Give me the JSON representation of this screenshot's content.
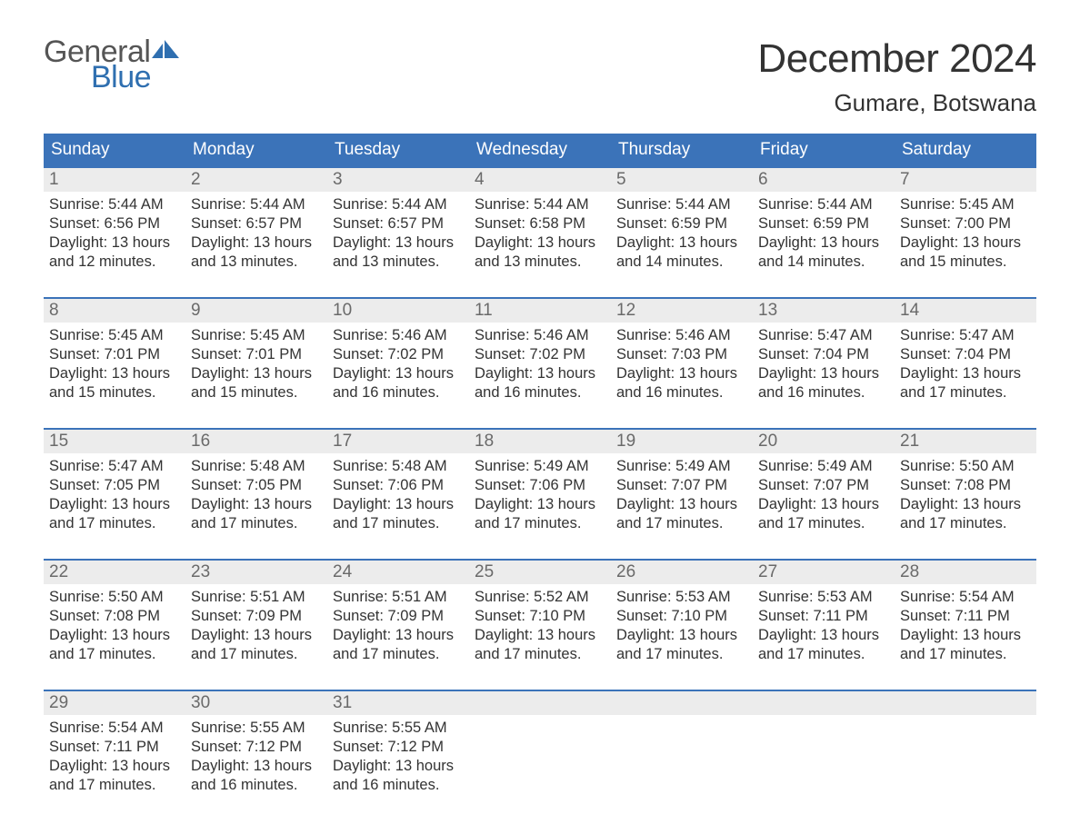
{
  "logo": {
    "line1": "General",
    "line2": "Blue",
    "flag_color": "#2f6fb0",
    "text_gray": "#555555"
  },
  "title": "December 2024",
  "location": "Gumare, Botswana",
  "colors": {
    "header_bg": "#3b73b9",
    "header_text": "#ffffff",
    "daynum_bg": "#ececec",
    "daynum_text": "#6a6a6a",
    "body_text": "#333333",
    "week_border": "#3b73b9",
    "page_bg": "#ffffff"
  },
  "typography": {
    "title_fontsize": 44,
    "location_fontsize": 26,
    "header_fontsize": 19,
    "daynum_fontsize": 19,
    "body_fontsize": 16.5,
    "logo_fontsize": 34
  },
  "day_headers": [
    "Sunday",
    "Monday",
    "Tuesday",
    "Wednesday",
    "Thursday",
    "Friday",
    "Saturday"
  ],
  "weeks": [
    [
      {
        "n": "1",
        "sunrise": "Sunrise: 5:44 AM",
        "sunset": "Sunset: 6:56 PM",
        "d1": "Daylight: 13 hours",
        "d2": "and 12 minutes."
      },
      {
        "n": "2",
        "sunrise": "Sunrise: 5:44 AM",
        "sunset": "Sunset: 6:57 PM",
        "d1": "Daylight: 13 hours",
        "d2": "and 13 minutes."
      },
      {
        "n": "3",
        "sunrise": "Sunrise: 5:44 AM",
        "sunset": "Sunset: 6:57 PM",
        "d1": "Daylight: 13 hours",
        "d2": "and 13 minutes."
      },
      {
        "n": "4",
        "sunrise": "Sunrise: 5:44 AM",
        "sunset": "Sunset: 6:58 PM",
        "d1": "Daylight: 13 hours",
        "d2": "and 13 minutes."
      },
      {
        "n": "5",
        "sunrise": "Sunrise: 5:44 AM",
        "sunset": "Sunset: 6:59 PM",
        "d1": "Daylight: 13 hours",
        "d2": "and 14 minutes."
      },
      {
        "n": "6",
        "sunrise": "Sunrise: 5:44 AM",
        "sunset": "Sunset: 6:59 PM",
        "d1": "Daylight: 13 hours",
        "d2": "and 14 minutes."
      },
      {
        "n": "7",
        "sunrise": "Sunrise: 5:45 AM",
        "sunset": "Sunset: 7:00 PM",
        "d1": "Daylight: 13 hours",
        "d2": "and 15 minutes."
      }
    ],
    [
      {
        "n": "8",
        "sunrise": "Sunrise: 5:45 AM",
        "sunset": "Sunset: 7:01 PM",
        "d1": "Daylight: 13 hours",
        "d2": "and 15 minutes."
      },
      {
        "n": "9",
        "sunrise": "Sunrise: 5:45 AM",
        "sunset": "Sunset: 7:01 PM",
        "d1": "Daylight: 13 hours",
        "d2": "and 15 minutes."
      },
      {
        "n": "10",
        "sunrise": "Sunrise: 5:46 AM",
        "sunset": "Sunset: 7:02 PM",
        "d1": "Daylight: 13 hours",
        "d2": "and 16 minutes."
      },
      {
        "n": "11",
        "sunrise": "Sunrise: 5:46 AM",
        "sunset": "Sunset: 7:02 PM",
        "d1": "Daylight: 13 hours",
        "d2": "and 16 minutes."
      },
      {
        "n": "12",
        "sunrise": "Sunrise: 5:46 AM",
        "sunset": "Sunset: 7:03 PM",
        "d1": "Daylight: 13 hours",
        "d2": "and 16 minutes."
      },
      {
        "n": "13",
        "sunrise": "Sunrise: 5:47 AM",
        "sunset": "Sunset: 7:04 PM",
        "d1": "Daylight: 13 hours",
        "d2": "and 16 minutes."
      },
      {
        "n": "14",
        "sunrise": "Sunrise: 5:47 AM",
        "sunset": "Sunset: 7:04 PM",
        "d1": "Daylight: 13 hours",
        "d2": "and 17 minutes."
      }
    ],
    [
      {
        "n": "15",
        "sunrise": "Sunrise: 5:47 AM",
        "sunset": "Sunset: 7:05 PM",
        "d1": "Daylight: 13 hours",
        "d2": "and 17 minutes."
      },
      {
        "n": "16",
        "sunrise": "Sunrise: 5:48 AM",
        "sunset": "Sunset: 7:05 PM",
        "d1": "Daylight: 13 hours",
        "d2": "and 17 minutes."
      },
      {
        "n": "17",
        "sunrise": "Sunrise: 5:48 AM",
        "sunset": "Sunset: 7:06 PM",
        "d1": "Daylight: 13 hours",
        "d2": "and 17 minutes."
      },
      {
        "n": "18",
        "sunrise": "Sunrise: 5:49 AM",
        "sunset": "Sunset: 7:06 PM",
        "d1": "Daylight: 13 hours",
        "d2": "and 17 minutes."
      },
      {
        "n": "19",
        "sunrise": "Sunrise: 5:49 AM",
        "sunset": "Sunset: 7:07 PM",
        "d1": "Daylight: 13 hours",
        "d2": "and 17 minutes."
      },
      {
        "n": "20",
        "sunrise": "Sunrise: 5:49 AM",
        "sunset": "Sunset: 7:07 PM",
        "d1": "Daylight: 13 hours",
        "d2": "and 17 minutes."
      },
      {
        "n": "21",
        "sunrise": "Sunrise: 5:50 AM",
        "sunset": "Sunset: 7:08 PM",
        "d1": "Daylight: 13 hours",
        "d2": "and 17 minutes."
      }
    ],
    [
      {
        "n": "22",
        "sunrise": "Sunrise: 5:50 AM",
        "sunset": "Sunset: 7:08 PM",
        "d1": "Daylight: 13 hours",
        "d2": "and 17 minutes."
      },
      {
        "n": "23",
        "sunrise": "Sunrise: 5:51 AM",
        "sunset": "Sunset: 7:09 PM",
        "d1": "Daylight: 13 hours",
        "d2": "and 17 minutes."
      },
      {
        "n": "24",
        "sunrise": "Sunrise: 5:51 AM",
        "sunset": "Sunset: 7:09 PM",
        "d1": "Daylight: 13 hours",
        "d2": "and 17 minutes."
      },
      {
        "n": "25",
        "sunrise": "Sunrise: 5:52 AM",
        "sunset": "Sunset: 7:10 PM",
        "d1": "Daylight: 13 hours",
        "d2": "and 17 minutes."
      },
      {
        "n": "26",
        "sunrise": "Sunrise: 5:53 AM",
        "sunset": "Sunset: 7:10 PM",
        "d1": "Daylight: 13 hours",
        "d2": "and 17 minutes."
      },
      {
        "n": "27",
        "sunrise": "Sunrise: 5:53 AM",
        "sunset": "Sunset: 7:11 PM",
        "d1": "Daylight: 13 hours",
        "d2": "and 17 minutes."
      },
      {
        "n": "28",
        "sunrise": "Sunrise: 5:54 AM",
        "sunset": "Sunset: 7:11 PM",
        "d1": "Daylight: 13 hours",
        "d2": "and 17 minutes."
      }
    ],
    [
      {
        "n": "29",
        "sunrise": "Sunrise: 5:54 AM",
        "sunset": "Sunset: 7:11 PM",
        "d1": "Daylight: 13 hours",
        "d2": "and 17 minutes."
      },
      {
        "n": "30",
        "sunrise": "Sunrise: 5:55 AM",
        "sunset": "Sunset: 7:12 PM",
        "d1": "Daylight: 13 hours",
        "d2": "and 16 minutes."
      },
      {
        "n": "31",
        "sunrise": "Sunrise: 5:55 AM",
        "sunset": "Sunset: 7:12 PM",
        "d1": "Daylight: 13 hours",
        "d2": "and 16 minutes."
      },
      {
        "empty": true
      },
      {
        "empty": true
      },
      {
        "empty": true
      },
      {
        "empty": true
      }
    ]
  ]
}
